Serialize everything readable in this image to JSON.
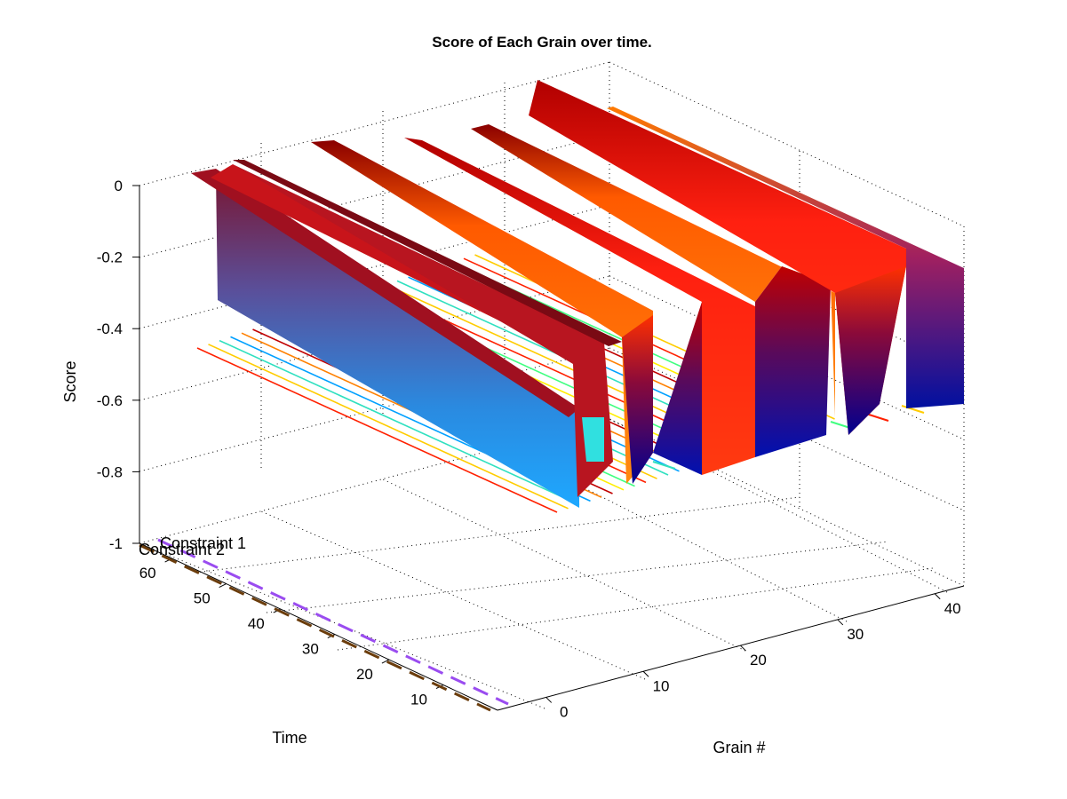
{
  "chart_data": {
    "type": "surface3d",
    "title": "Score of Each Grain over time.",
    "xlabel": "Grain #",
    "ylabel": "Time",
    "zlabel": "Score",
    "xlim": [
      -5,
      43
    ],
    "ylim": [
      0,
      66
    ],
    "zlim": [
      -1,
      0
    ],
    "xticks": [
      "0",
      "10",
      "20",
      "30",
      "40"
    ],
    "yticks": [
      "10",
      "20",
      "30",
      "40",
      "50",
      "60"
    ],
    "zticks": [
      "0",
      "-0.2",
      "-0.4",
      "-0.6",
      "-0.8",
      "-1"
    ],
    "grid": true,
    "colormap": "jet",
    "constraints": [
      {
        "name": "Constraint 1",
        "color": "#9a4cf0",
        "style": "dashed"
      },
      {
        "name": "Constraint 2",
        "color": "#6b3d0c",
        "style": "dashed"
      }
    ],
    "ridges": [
      {
        "grain": 1,
        "score_top": -0.02,
        "score_bottom": -0.62
      },
      {
        "grain": 3,
        "score_top": -0.03,
        "score_bottom": -0.62
      },
      {
        "grain": 6,
        "score_top": -0.04,
        "score_bottom": -0.72
      },
      {
        "grain": 10,
        "score_top": -0.01,
        "score_bottom": -0.75
      },
      {
        "grain": 16,
        "score_top": -0.02,
        "score_bottom": -0.8
      },
      {
        "grain": 23,
        "score_top": -0.01,
        "score_bottom": -0.82
      },
      {
        "grain": 30,
        "score_top": -0.01,
        "score_bottom": -0.85
      },
      {
        "grain": 36,
        "score_top": 0.0,
        "score_bottom": -0.87
      }
    ]
  }
}
